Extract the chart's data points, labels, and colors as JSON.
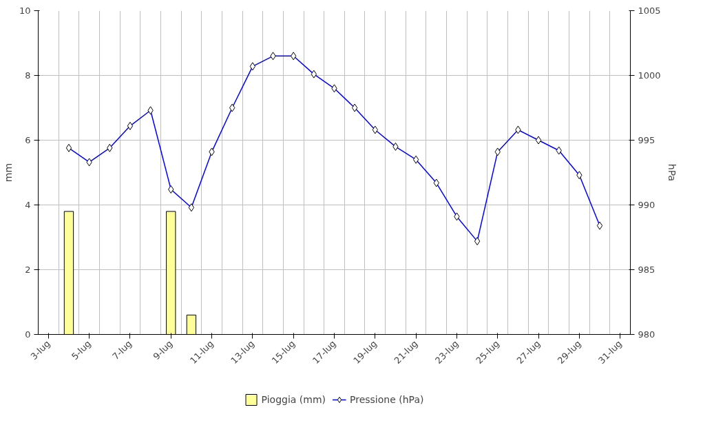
{
  "chart_data": {
    "type": "bar",
    "categories": [
      "3-lug",
      null,
      "5-lug",
      null,
      "7-lug",
      null,
      "9-lug",
      null,
      "11-lug",
      null,
      "13-lug",
      null,
      "15-lug",
      null,
      "17-lug",
      null,
      "19-lug",
      null,
      "21-lug",
      null,
      "23-lug",
      null,
      "25-lug",
      null,
      "27-lug",
      null,
      "29-lug",
      null,
      "31-lug"
    ],
    "ylabel": "mm",
    "y2label": "hPa",
    "ylim": [
      0,
      10
    ],
    "yticks": [
      0,
      2,
      4,
      6,
      8,
      10
    ],
    "y2lim": [
      980,
      1005
    ],
    "y2ticks": [
      980,
      985,
      990,
      995,
      1000,
      1005
    ],
    "grid": true,
    "legend": "bottom",
    "marker": "diamond",
    "series": [
      {
        "name": "Pioggia (mm)",
        "color": "#ffff99",
        "values": [
          null,
          3.8,
          null,
          null,
          null,
          null,
          3.8,
          0.6,
          null,
          null,
          null,
          null,
          null,
          null,
          null,
          null,
          null,
          null,
          null,
          null,
          null,
          null,
          null,
          null,
          null,
          null,
          null,
          null,
          null
        ]
      },
      {
        "name": "Pressione (hPa)",
        "type": "line",
        "axis": "y2",
        "color": "#0000ff",
        "values": [
          null,
          994.4,
          993.3,
          994.4,
          996.1,
          997.3,
          991.2,
          989.8,
          994.1,
          997.5,
          1000.7,
          1001.5,
          1001.5,
          1000.1,
          999.0,
          997.5,
          995.8,
          994.5,
          993.5,
          991.7,
          989.1,
          987.2,
          994.1,
          995.8,
          995.0,
          994.2,
          992.3,
          988.4,
          null
        ]
      }
    ]
  }
}
